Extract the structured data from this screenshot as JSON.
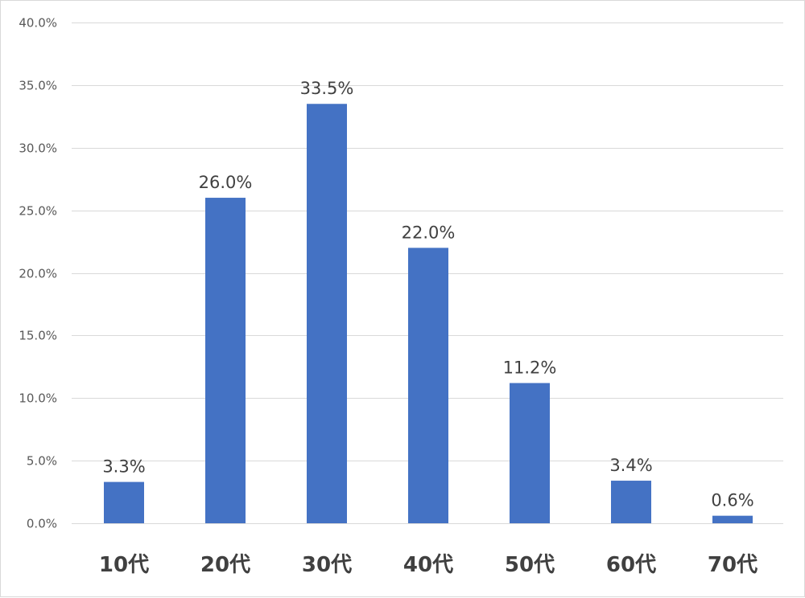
{
  "chart_data": {
    "type": "bar",
    "categories": [
      "10代",
      "20代",
      "30代",
      "40代",
      "50代",
      "60代",
      "70代"
    ],
    "values": [
      3.3,
      26.0,
      33.5,
      22.0,
      11.2,
      3.4,
      0.6
    ],
    "data_labels": [
      "3.3%",
      "26.0%",
      "33.5%",
      "22.0%",
      "11.2%",
      "3.4%",
      "0.6%"
    ],
    "y_ticks": [
      "0.0%",
      "5.0%",
      "10.0%",
      "15.0%",
      "20.0%",
      "25.0%",
      "30.0%",
      "35.0%",
      "40.0%"
    ],
    "ylim": [
      0,
      40
    ],
    "y_step": 5,
    "title": "",
    "xlabel": "",
    "ylabel": "",
    "grid": true,
    "legend": "none",
    "bar_color": "#4472C4",
    "grid_color": "#D9D9D9"
  }
}
